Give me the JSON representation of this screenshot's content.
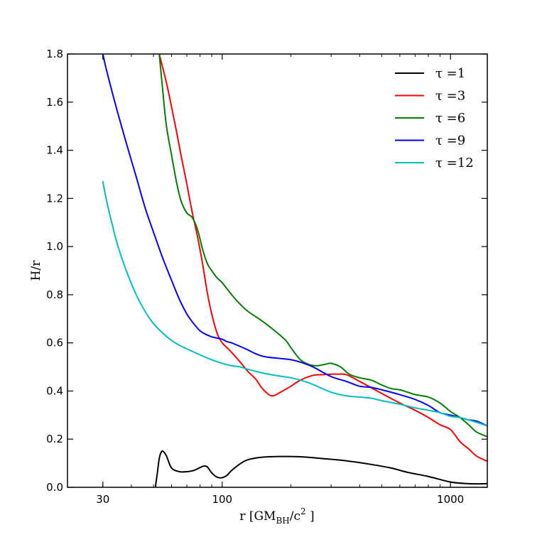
{
  "chart_data": {
    "type": "line",
    "title": "",
    "xlabel": "r [GM_BH/c^2 ]",
    "xlabel_parts": {
      "main": "r [GM",
      "sub": "BH",
      "mid": "/c",
      "sup": "2",
      "end": " ]"
    },
    "ylabel": "H/r",
    "xscale": "log",
    "xlim": [
      21,
      1450
    ],
    "ylim": [
      0,
      1.8
    ],
    "x_ticks": [
      {
        "value": 30,
        "label": "30"
      },
      {
        "value": 100,
        "label": "100"
      },
      {
        "value": 1000,
        "label": "1000"
      }
    ],
    "y_ticks": [
      {
        "value": 0.0,
        "label": "0.0"
      },
      {
        "value": 0.2,
        "label": "0.2"
      },
      {
        "value": 0.4,
        "label": "0.4"
      },
      {
        "value": 0.6,
        "label": "0.6"
      },
      {
        "value": 0.8,
        "label": "0.8"
      },
      {
        "value": 1.0,
        "label": "1.0"
      },
      {
        "value": 1.2,
        "label": "1.2"
      },
      {
        "value": 1.4,
        "label": "1.4"
      },
      {
        "value": 1.6,
        "label": "1.6"
      },
      {
        "value": 1.8,
        "label": "1.8"
      }
    ],
    "grid": false,
    "legend_position": "top-right",
    "series": [
      {
        "name": "τ =1",
        "color": "#000000",
        "x": [
          51,
          51.3,
          52,
          53,
          54,
          55,
          57,
          60,
          65,
          70,
          75,
          80,
          83,
          86,
          90,
          95,
          100,
          105,
          110,
          120,
          130,
          150,
          180,
          220,
          270,
          350,
          450,
          550,
          650,
          800,
          1000,
          1200,
          1450
        ],
        "y": [
          0,
          0.02,
          0.06,
          0.12,
          0.145,
          0.15,
          0.13,
          0.08,
          0.065,
          0.065,
          0.07,
          0.082,
          0.088,
          0.085,
          0.06,
          0.042,
          0.04,
          0.05,
          0.07,
          0.098,
          0.115,
          0.125,
          0.128,
          0.127,
          0.12,
          0.11,
          0.095,
          0.08,
          0.062,
          0.045,
          0.022,
          0.015,
          0.015
        ]
      },
      {
        "name": "τ =3",
        "color": "#ff0000",
        "x": [
          53,
          57,
          60,
          63,
          66,
          70,
          74,
          78,
          82,
          86,
          90,
          95,
          100,
          105,
          110,
          120,
          130,
          140,
          150,
          160,
          165,
          170,
          180,
          200,
          220,
          250,
          280,
          300,
          320,
          350,
          400,
          500,
          600,
          700,
          800,
          900,
          1000,
          1100,
          1200,
          1300,
          1450
        ],
        "y": [
          1.8,
          1.68,
          1.58,
          1.48,
          1.38,
          1.26,
          1.14,
          1.04,
          0.93,
          0.81,
          0.72,
          0.64,
          0.6,
          0.58,
          0.56,
          0.52,
          0.48,
          0.45,
          0.41,
          0.385,
          0.38,
          0.382,
          0.395,
          0.42,
          0.445,
          0.465,
          0.468,
          0.47,
          0.47,
          0.468,
          0.44,
          0.39,
          0.35,
          0.32,
          0.29,
          0.26,
          0.24,
          0.19,
          0.16,
          0.13,
          0.108
        ]
      },
      {
        "name": "τ =6",
        "color": "#008000",
        "x": [
          53,
          55,
          57,
          60,
          63,
          66,
          70,
          74,
          78,
          82,
          86,
          90,
          95,
          100,
          110,
          120,
          130,
          150,
          170,
          190,
          200,
          220,
          240,
          260,
          280,
          300,
          330,
          360,
          400,
          450,
          500,
          550,
          600,
          650,
          700,
          800,
          900,
          1000,
          1100,
          1200,
          1300,
          1450
        ],
        "y": [
          1.8,
          1.64,
          1.5,
          1.38,
          1.27,
          1.19,
          1.14,
          1.12,
          1.07,
          0.99,
          0.93,
          0.9,
          0.87,
          0.85,
          0.8,
          0.76,
          0.73,
          0.69,
          0.65,
          0.61,
          0.58,
          0.53,
          0.51,
          0.505,
          0.51,
          0.515,
          0.5,
          0.47,
          0.455,
          0.445,
          0.425,
          0.41,
          0.405,
          0.395,
          0.385,
          0.375,
          0.35,
          0.315,
          0.29,
          0.26,
          0.23,
          0.21
        ]
      },
      {
        "name": "τ =9",
        "color": "#0000ff",
        "x": [
          30,
          31,
          33,
          35,
          38,
          42,
          46,
          50,
          55,
          60,
          65,
          70,
          75,
          80,
          85,
          90,
          95,
          100,
          105,
          110,
          120,
          130,
          140,
          150,
          160,
          180,
          200,
          220,
          250,
          300,
          350,
          400,
          450,
          500,
          600,
          700,
          800,
          900,
          1000,
          1100,
          1200,
          1300,
          1450
        ],
        "y": [
          1.8,
          1.74,
          1.64,
          1.55,
          1.43,
          1.29,
          1.16,
          1.06,
          0.95,
          0.86,
          0.78,
          0.72,
          0.68,
          0.65,
          0.635,
          0.625,
          0.62,
          0.615,
          0.605,
          0.6,
          0.585,
          0.57,
          0.555,
          0.545,
          0.54,
          0.535,
          0.53,
          0.52,
          0.5,
          0.46,
          0.44,
          0.42,
          0.415,
          0.405,
          0.385,
          0.365,
          0.34,
          0.31,
          0.3,
          0.29,
          0.28,
          0.275,
          0.255
        ]
      },
      {
        "name": "τ =12",
        "color": "#00bfbf",
        "x": [
          30,
          31,
          33,
          35,
          38,
          42,
          46,
          50,
          55,
          60,
          65,
          70,
          80,
          90,
          100,
          110,
          120,
          130,
          150,
          170,
          200,
          230,
          260,
          300,
          350,
          400,
          450,
          500,
          600,
          700,
          800,
          900,
          1000,
          1100,
          1200,
          1300,
          1450
        ],
        "y": [
          1.27,
          1.2,
          1.09,
          1.0,
          0.9,
          0.8,
          0.73,
          0.68,
          0.64,
          0.61,
          0.59,
          0.575,
          0.55,
          0.53,
          0.515,
          0.505,
          0.5,
          0.49,
          0.475,
          0.465,
          0.455,
          0.44,
          0.42,
          0.395,
          0.38,
          0.375,
          0.37,
          0.36,
          0.345,
          0.33,
          0.32,
          0.31,
          0.295,
          0.29,
          0.28,
          0.27,
          0.255
        ]
      }
    ]
  }
}
